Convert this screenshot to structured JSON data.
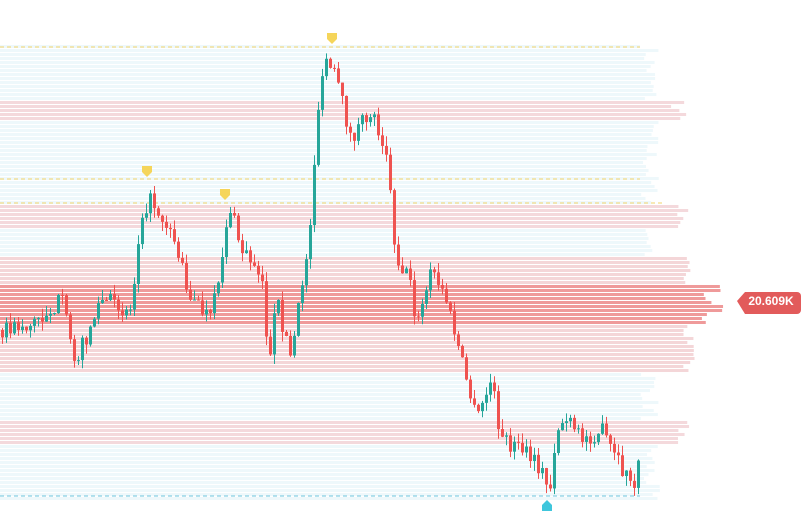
{
  "price_label": "20.609K"
}
